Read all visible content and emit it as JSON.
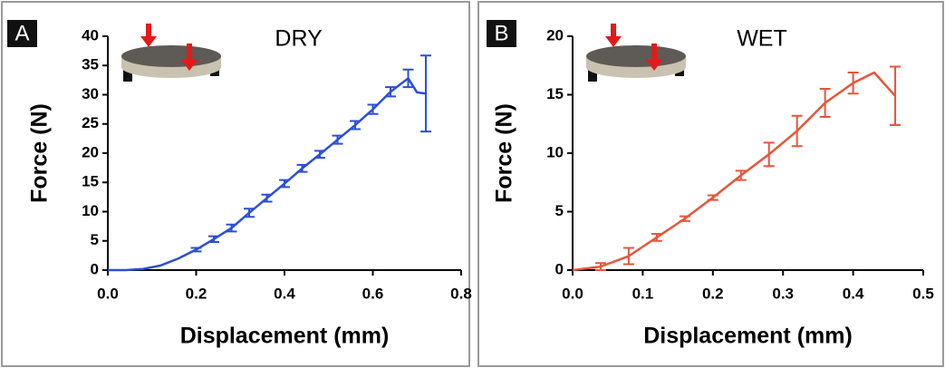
{
  "chart_data": [
    {
      "type": "line",
      "panel": "A",
      "title": "DRY",
      "x_label": "Displacement (mm)",
      "y_label": "Force (N)",
      "xlim": [
        0,
        0.8
      ],
      "ylim": [
        0,
        40
      ],
      "xticks": [
        {
          "value": 0,
          "label": "0.0"
        },
        0.2,
        0.4,
        0.6,
        0.8
      ],
      "yticks": [
        0,
        5,
        10,
        15,
        20,
        25,
        30,
        35,
        40
      ],
      "x": [
        0,
        0.04,
        0.08,
        0.12,
        0.16,
        0.2,
        0.24,
        0.28,
        0.32,
        0.36,
        0.4,
        0.44,
        0.48,
        0.52,
        0.56,
        0.6,
        0.64,
        0.68,
        0.7,
        0.72
      ],
      "series": [
        {
          "color": "#2a4fd8",
          "values": [
            0,
            0,
            0.2,
            0.8,
            2,
            3.5,
            5.3,
            7.2,
            9.8,
            12.3,
            14.8,
            17.4,
            19.8,
            22.3,
            24.8,
            27.5,
            30.5,
            32.8,
            30.4,
            30.2
          ],
          "errors": [
            null,
            null,
            null,
            null,
            null,
            0.3,
            0.5,
            0.6,
            0.7,
            0.6,
            0.6,
            0.6,
            0.6,
            0.7,
            0.7,
            0.8,
            0.8,
            1.5,
            null,
            6.5
          ]
        }
      ]
    },
    {
      "type": "line",
      "panel": "B",
      "title": "WET",
      "x_label": "Displacement (mm)",
      "y_label": "Force (N)",
      "xlim": [
        0,
        0.5
      ],
      "ylim": [
        0,
        20
      ],
      "xticks": [
        {
          "value": 0,
          "label": "0.0"
        },
        0.1,
        0.2,
        0.3,
        0.4,
        0.5
      ],
      "yticks": [
        0,
        5,
        10,
        15,
        20
      ],
      "x": [
        0,
        0.04,
        0.08,
        0.12,
        0.16,
        0.2,
        0.24,
        0.28,
        0.32,
        0.36,
        0.4,
        0.43,
        0.46
      ],
      "series": [
        {
          "color": "#e8553a",
          "values": [
            0,
            0.3,
            1.2,
            2.8,
            4.4,
            6.2,
            8.1,
            9.9,
            11.9,
            14.3,
            16.0,
            16.9,
            14.9
          ],
          "errors": [
            null,
            0.3,
            0.7,
            0.3,
            0.2,
            0.2,
            0.4,
            1.0,
            1.3,
            1.2,
            0.9,
            null,
            2.5
          ]
        }
      ]
    }
  ]
}
